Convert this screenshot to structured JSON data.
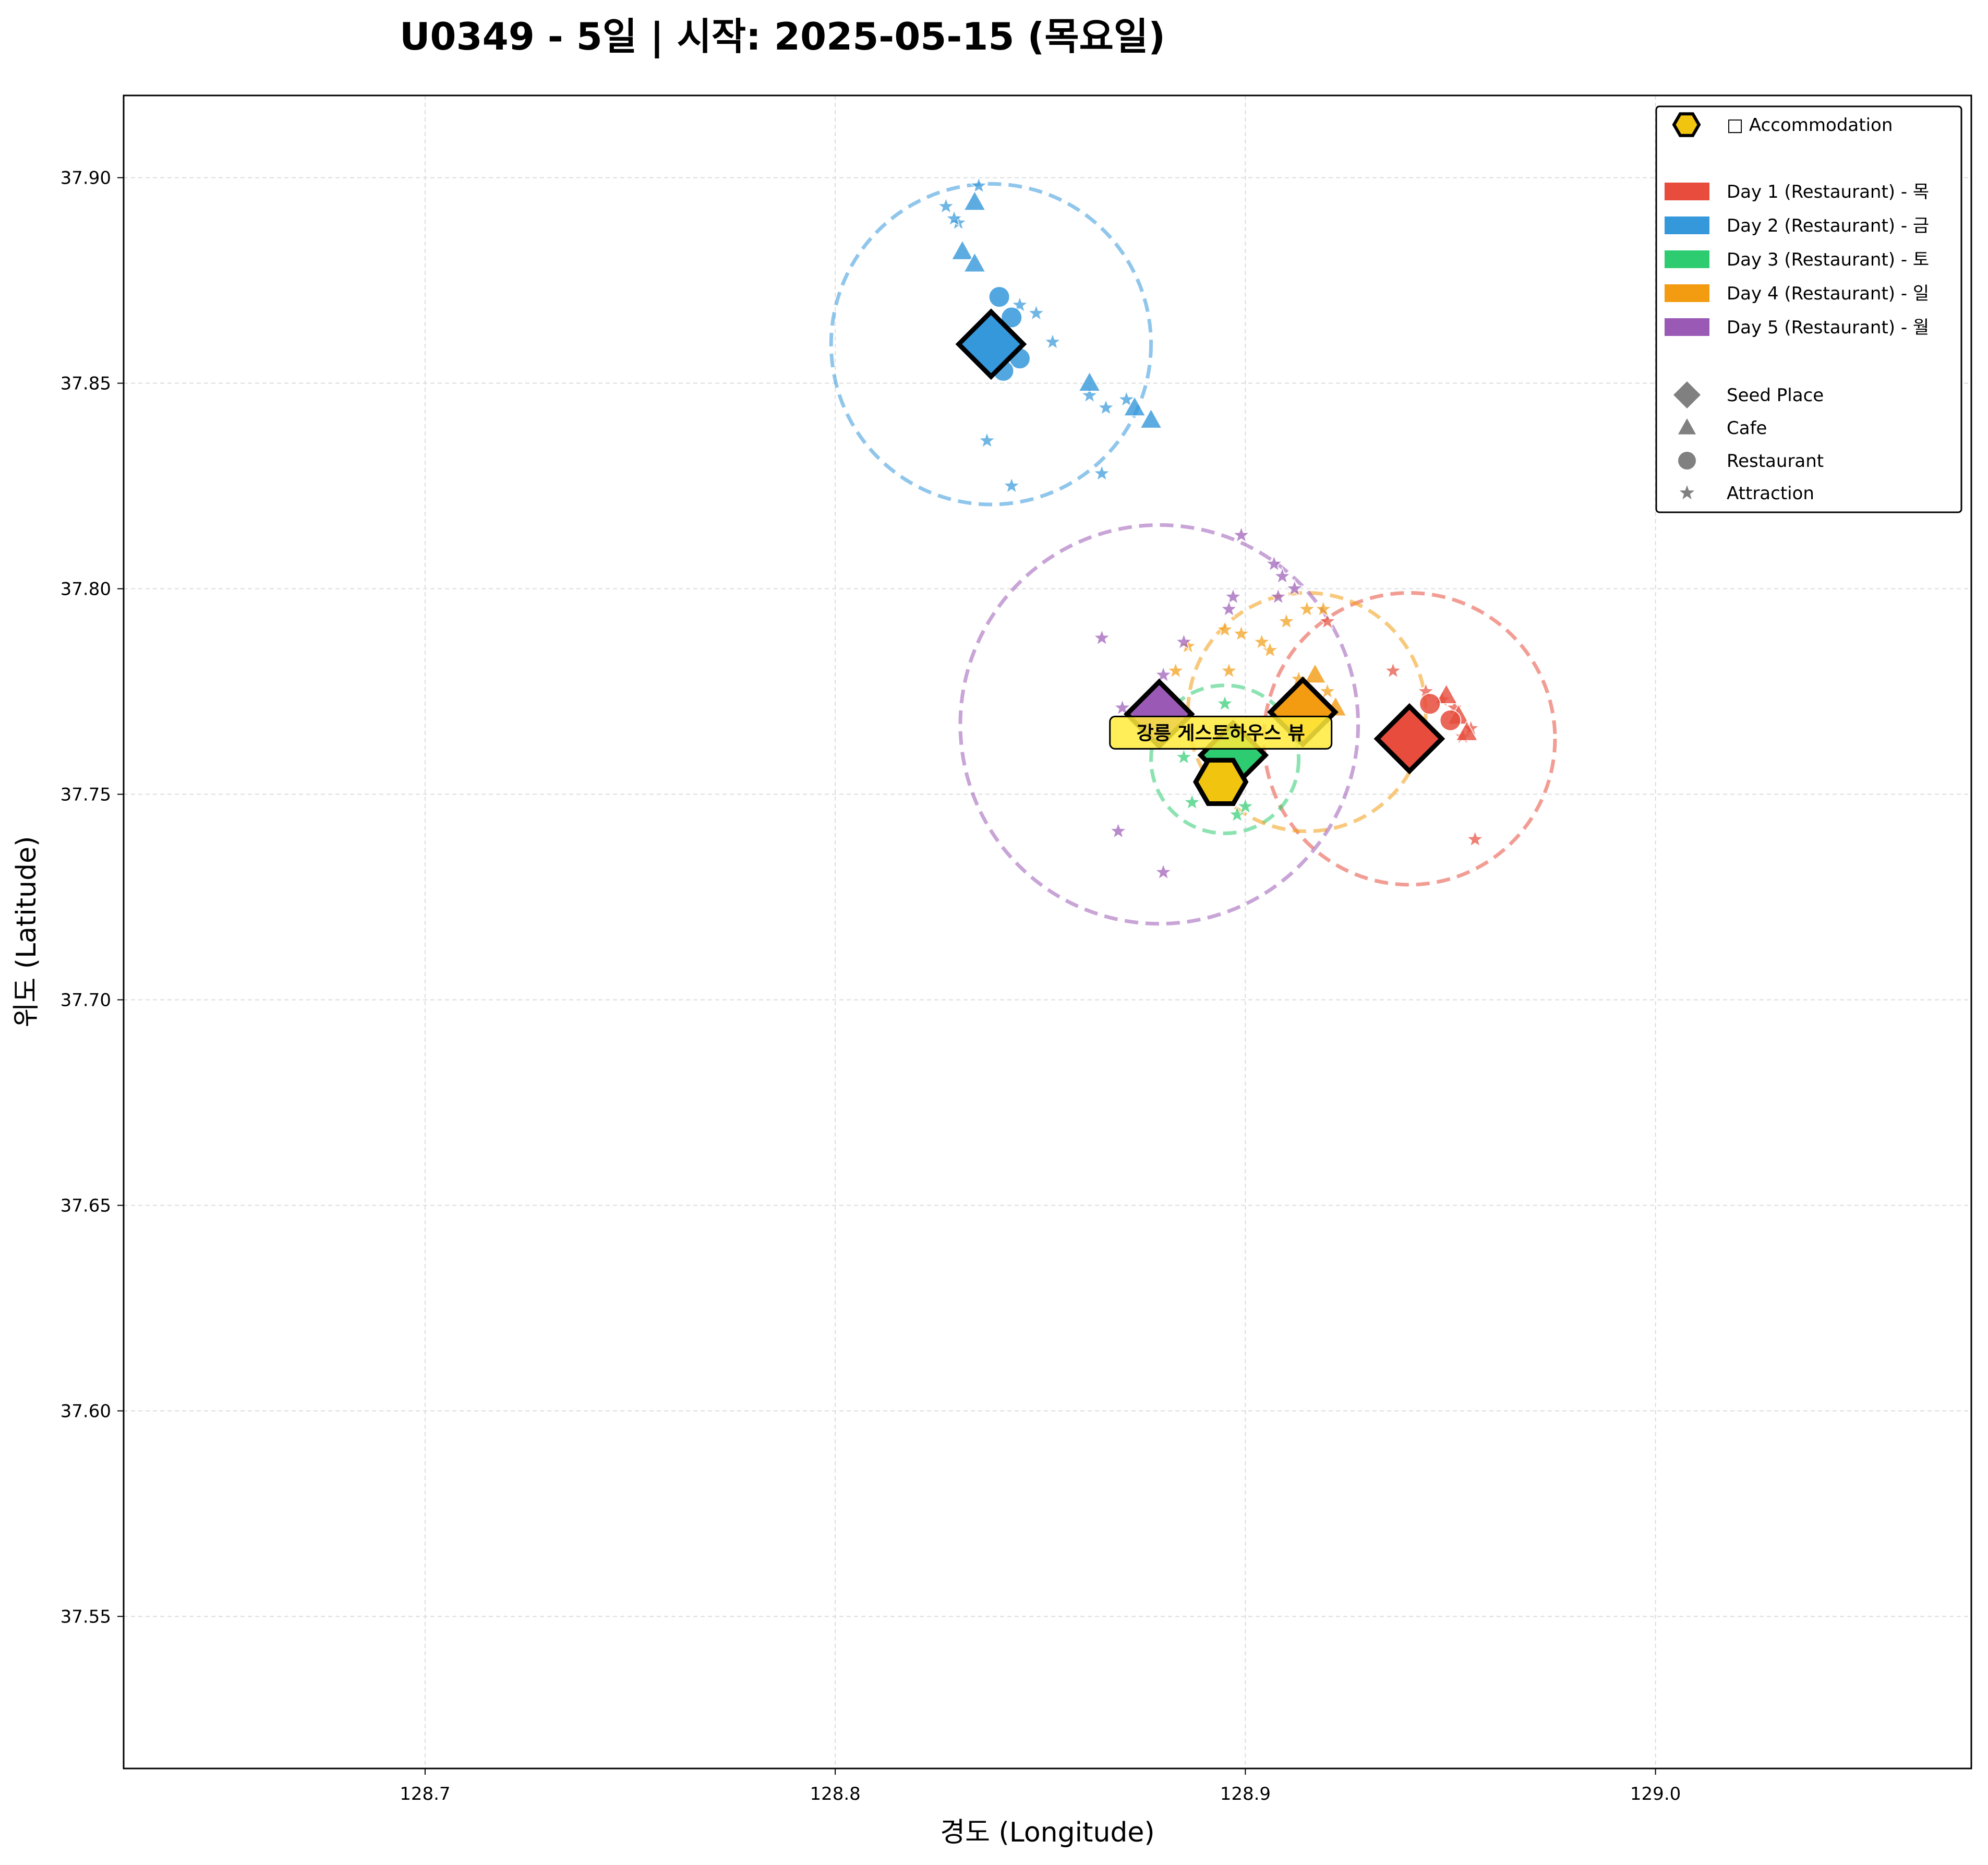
{
  "chart_data": {
    "type": "scatter",
    "title": "U0349 - 5일 | 시작: 2025-05-15 (목요일)",
    "xlabel": "경도 (Longitude)",
    "ylabel": "위도 (Latitude)",
    "xlim": [
      128.6265,
      129.077
    ],
    "ylim": [
      37.513,
      37.92
    ],
    "xticks": [
      "128.7",
      "128.8",
      "128.9",
      "129.0"
    ],
    "yticks": [
      "37.55",
      "37.60",
      "37.65",
      "37.70",
      "37.75",
      "37.80",
      "37.85",
      "37.90"
    ],
    "grid": true,
    "legend_position": "top-right",
    "legend": {
      "accommodation": "□ Accommodation",
      "days": [
        "Day 1 (Restaurant) - 목",
        "Day 2 (Restaurant) - 금",
        "Day 3 (Restaurant) - 토",
        "Day 4 (Restaurant) - 일",
        "Day 5 (Restaurant) - 월"
      ],
      "markers": [
        "Seed Place",
        "Cafe",
        "Restaurant",
        "Attraction"
      ]
    },
    "accommodation": {
      "name": "강릉 게스트하우스 뷰",
      "lon": 128.894,
      "lat": 37.753,
      "color": "#f1c40f"
    },
    "series": [
      {
        "name": "Day 1 (Restaurant) - 목",
        "color": "#e74c3c",
        "seed": {
          "lon": 128.94,
          "lat": 37.7635
        },
        "circle": {
          "lon": 128.94,
          "lat": 37.7635,
          "r": 0.0355
        },
        "cafes": [
          [
            128.952,
            37.769
          ],
          [
            128.949,
            37.774
          ],
          [
            128.954,
            37.765
          ]
        ],
        "restaurants": [
          [
            128.945,
            37.772
          ],
          [
            128.95,
            37.768
          ]
        ],
        "attractions": [
          [
            128.936,
            37.78
          ],
          [
            128.944,
            37.775
          ],
          [
            128.951,
            37.771
          ],
          [
            128.953,
            37.764
          ],
          [
            128.956,
            37.739
          ],
          [
            128.92,
            37.792
          ],
          [
            128.948,
            37.773
          ],
          [
            128.955,
            37.766
          ]
        ]
      },
      {
        "name": "Day 2 (Restaurant) - 금",
        "color": "#3498db",
        "seed": {
          "lon": 128.838,
          "lat": 37.8595
        },
        "circle": {
          "lon": 128.838,
          "lat": 37.8595,
          "r": 0.039
        },
        "cafes": [
          [
            128.834,
            37.894
          ],
          [
            128.831,
            37.882
          ],
          [
            128.834,
            37.879
          ],
          [
            128.862,
            37.85
          ],
          [
            128.873,
            37.844
          ],
          [
            128.877,
            37.841
          ]
        ],
        "restaurants": [
          [
            128.84,
            37.871
          ],
          [
            128.843,
            37.866
          ],
          [
            128.845,
            37.856
          ],
          [
            128.841,
            37.853
          ]
        ],
        "attractions": [
          [
            128.835,
            37.898
          ],
          [
            128.827,
            37.893
          ],
          [
            128.83,
            37.889
          ],
          [
            128.829,
            37.89
          ],
          [
            128.845,
            37.869
          ],
          [
            128.849,
            37.867
          ],
          [
            128.853,
            37.86
          ],
          [
            128.837,
            37.836
          ],
          [
            128.843,
            37.825
          ],
          [
            128.862,
            37.847
          ],
          [
            128.866,
            37.844
          ],
          [
            128.871,
            37.846
          ],
          [
            128.865,
            37.828
          ]
        ]
      },
      {
        "name": "Day 3 (Restaurant) - 토",
        "color": "#2ecc71",
        "seed": {
          "lon": 128.897,
          "lat": 37.7595
        },
        "circle": {
          "lon": 128.895,
          "lat": 37.7585,
          "r": 0.018
        },
        "cafes": [
          [
            128.894,
            37.762
          ],
          [
            128.899,
            37.757
          ]
        ],
        "restaurants": [
          [
            128.893,
            37.758
          ]
        ],
        "attractions": [
          [
            128.895,
            37.772
          ],
          [
            128.885,
            37.759
          ],
          [
            128.887,
            37.748
          ],
          [
            128.898,
            37.745
          ],
          [
            128.9,
            37.747
          ],
          [
            128.891,
            37.761
          ]
        ]
      },
      {
        "name": "Day 4 (Restaurant) - 일",
        "color": "#f39c12",
        "seed": {
          "lon": 128.914,
          "lat": 37.77
        },
        "circle": {
          "lon": 128.915,
          "lat": 37.77,
          "r": 0.029
        },
        "cafes": [
          [
            128.917,
            37.779
          ],
          [
            128.922,
            37.771
          ],
          [
            128.918,
            37.769
          ]
        ],
        "restaurants": [
          [
            128.916,
            37.767
          ]
        ],
        "attractions": [
          [
            128.906,
            37.785
          ],
          [
            128.91,
            37.792
          ],
          [
            128.915,
            37.795
          ],
          [
            128.919,
            37.795
          ],
          [
            128.895,
            37.79
          ],
          [
            128.899,
            37.789
          ],
          [
            128.886,
            37.786
          ],
          [
            128.883,
            37.78
          ],
          [
            128.896,
            37.78
          ],
          [
            128.904,
            37.787
          ],
          [
            128.913,
            37.778
          ],
          [
            128.92,
            37.775
          ]
        ]
      },
      {
        "name": "Day 5 (Restaurant) - 월",
        "color": "#9b59b6",
        "seed": {
          "lon": 128.879,
          "lat": 37.7695
        },
        "circle": {
          "lon": 128.879,
          "lat": 37.767,
          "r": 0.0485
        },
        "cafes": [
          [
            128.878,
            37.767
          ]
        ],
        "restaurants": [],
        "attractions": [
          [
            128.899,
            37.813
          ],
          [
            128.907,
            37.806
          ],
          [
            128.909,
            37.803
          ],
          [
            128.912,
            37.8
          ],
          [
            128.908,
            37.798
          ],
          [
            128.897,
            37.798
          ],
          [
            128.896,
            37.795
          ],
          [
            128.865,
            37.788
          ],
          [
            128.885,
            37.787
          ],
          [
            128.88,
            37.779
          ],
          [
            128.87,
            37.771
          ],
          [
            128.869,
            37.741
          ],
          [
            128.88,
            37.731
          ]
        ]
      }
    ]
  }
}
